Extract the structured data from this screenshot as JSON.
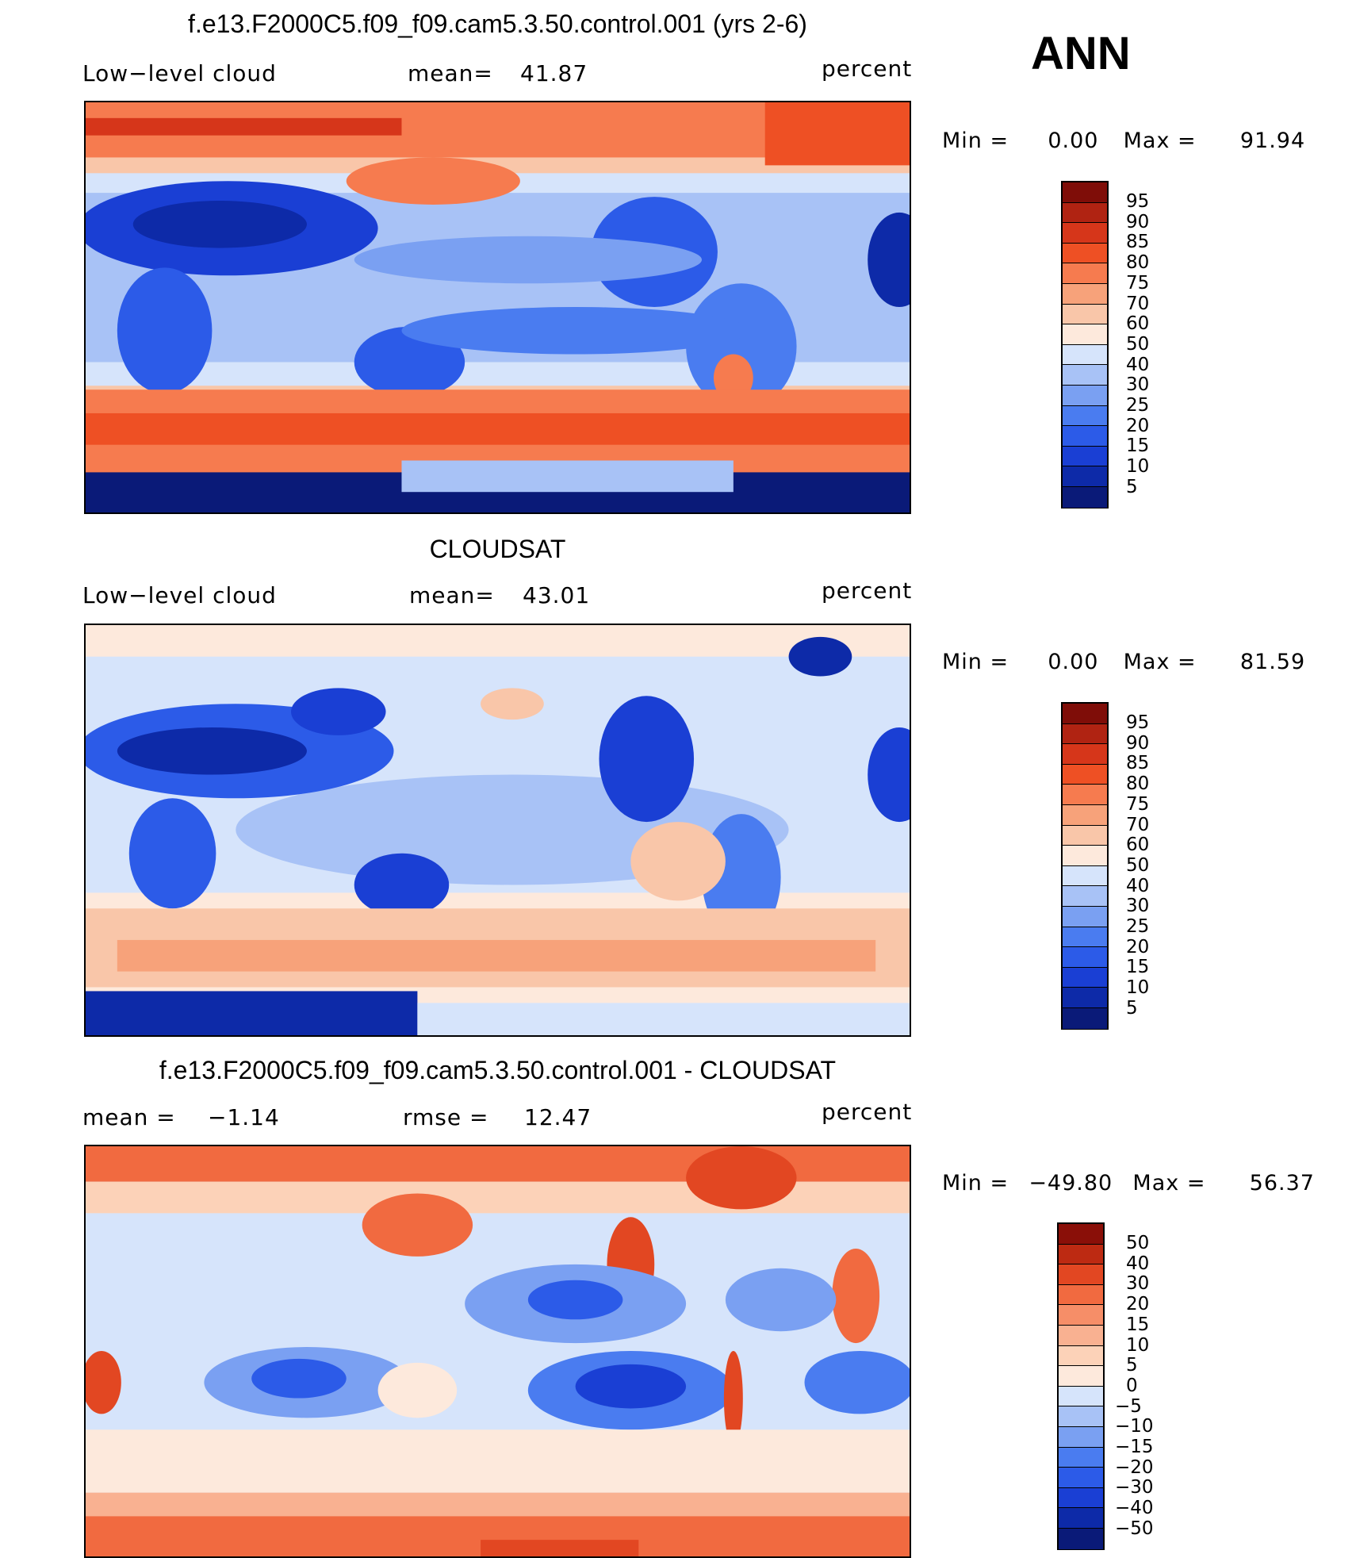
{
  "season": "ANN",
  "colors": {
    "levels_abs": [
      "#0a1a78",
      "#0d2aa8",
      "#1a3fd4",
      "#2c5be8",
      "#4a7cf0",
      "#7aa0f2",
      "#a8c2f6",
      "#d6e4fb",
      "#fde9dc",
      "#f9c6a9",
      "#f7a27a",
      "#f67b4f",
      "#ee5024",
      "#d6361a",
      "#b02312",
      "#7f0d08"
    ],
    "levels_diff": [
      "#0a1a78",
      "#0d2aa8",
      "#1a3fd4",
      "#2c5be8",
      "#4a7cf0",
      "#7aa0f2",
      "#a8c2f6",
      "#d6e4fb",
      "#fde9dc",
      "#fcd2b8",
      "#f9b191",
      "#f68e68",
      "#f16a40",
      "#e24722",
      "#bd2a12",
      "#8a0f08"
    ]
  },
  "panels": [
    {
      "title": "f.e13.F2000C5.f09_f09.cam5.3.50.control.001 (yrs 2-6)",
      "left_label": "Low−level cloud",
      "mid_label": "mean=",
      "mid_value": "41.87",
      "units": "percent",
      "min_label": "Min  =",
      "min_value": "0.00",
      "max_label": "Max  =",
      "max_value": "91.94",
      "colorbar_labels": [
        "95",
        "90",
        "85",
        "80",
        "75",
        "70",
        "60",
        "50",
        "40",
        "30",
        "25",
        "20",
        "15",
        "10",
        "5"
      ]
    },
    {
      "title": "CLOUDSAT",
      "left_label": "Low−level cloud",
      "mid_label": "mean=",
      "mid_value": "43.01",
      "units": "percent",
      "min_label": "Min  =",
      "min_value": "0.00",
      "max_label": "Max  =",
      "max_value": "81.59",
      "colorbar_labels": [
        "95",
        "90",
        "85",
        "80",
        "75",
        "70",
        "60",
        "50",
        "40",
        "30",
        "25",
        "20",
        "15",
        "10",
        "5"
      ]
    },
    {
      "title": "f.e13.F2000C5.f09_f09.cam5.3.50.control.001 - CLOUDSAT",
      "left_label": "mean  =",
      "left_value": "−1.14",
      "mid_label": "rmse  =",
      "mid_value": "12.47",
      "units": "percent",
      "min_label": "Min  =",
      "min_value": "−49.80",
      "max_label": "Max  =",
      "max_value": "56.37",
      "colorbar_labels": [
        "50",
        "40",
        "30",
        "20",
        "15",
        "10",
        "5",
        "0",
        "−5",
        "−10",
        "−15",
        "−20",
        "−30",
        "−40",
        "−50"
      ]
    }
  ]
}
